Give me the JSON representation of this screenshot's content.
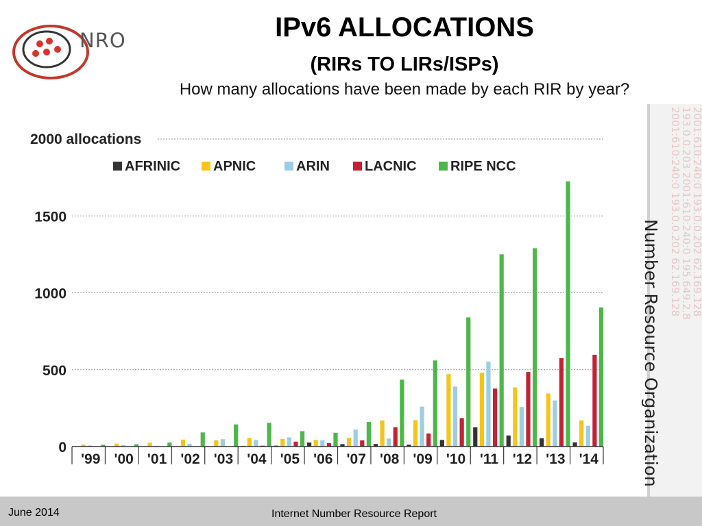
{
  "header": {
    "logo_text": "NRO",
    "title": "IPv6 ALLOCATIONS",
    "subtitle": "(RIRs TO LIRs/ISPs)",
    "question": "How many allocations have been made by each RIR by year?"
  },
  "side": {
    "label": "Number Resource Organization",
    "ip_texts": [
      "2001:610:240:0 193.0.0.202 62.169.128",
      "193.0.0.203 2001:610:240:0 195.649.2.8",
      "2001:610:240:0 193.0.0.202 62.169.128"
    ]
  },
  "footer": {
    "date": "June 2014",
    "title": "Internet Number Resource Report"
  },
  "chart_data": {
    "type": "bar",
    "ylabel": "2000 allocations",
    "ytick_labels": [
      "1500",
      "1000",
      "500",
      "0"
    ],
    "yticks": [
      1500,
      1000,
      500,
      0
    ],
    "ylim": [
      0,
      2000
    ],
    "grid": true,
    "legend_position": "top",
    "categories": [
      "'99",
      "'00",
      "'01",
      "'02",
      "'03",
      "'04",
      "'05",
      "'06",
      "'07",
      "'08",
      "'09",
      "'10",
      "'11",
      "'12",
      "'13",
      "'14"
    ],
    "series": [
      {
        "name": "AFRINIC",
        "color": "#333333",
        "values": [
          0,
          0,
          1,
          1,
          2,
          4,
          6,
          26,
          16,
          17,
          12,
          43,
          125,
          72,
          54,
          27
        ]
      },
      {
        "name": "APNIC",
        "color": "#f5c519",
        "values": [
          13,
          19,
          25,
          45,
          40,
          55,
          50,
          43,
          57,
          170,
          172,
          471,
          480,
          385,
          345,
          170
        ]
      },
      {
        "name": "ARIN",
        "color": "#9ccde3",
        "values": [
          7,
          10,
          5,
          18,
          48,
          42,
          60,
          40,
          110,
          52,
          260,
          390,
          553,
          257,
          300,
          135
        ]
      },
      {
        "name": "LACNIC",
        "color": "#c42135",
        "values": [
          0,
          0,
          1,
          1,
          2,
          6,
          32,
          22,
          40,
          125,
          85,
          185,
          377,
          485,
          575,
          597
        ]
      },
      {
        "name": "RIPE NCC",
        "color": "#4db848",
        "values": [
          12,
          15,
          26,
          92,
          144,
          155,
          100,
          90,
          160,
          435,
          560,
          840,
          1250,
          1290,
          1725,
          905
        ]
      }
    ]
  }
}
